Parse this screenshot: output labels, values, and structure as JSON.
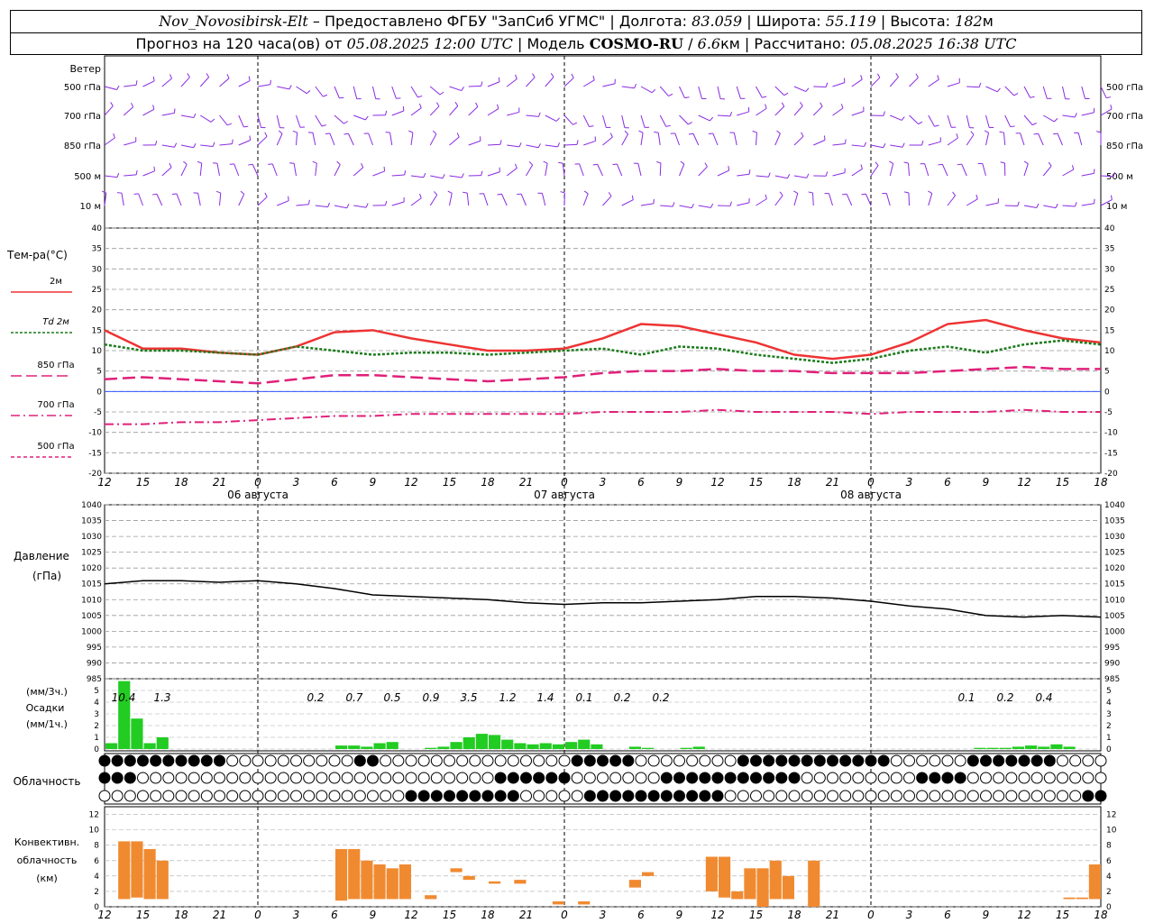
{
  "header": {
    "station": "Nov_Novosibirsk-Elt",
    "dash": "–",
    "provided": "Предоставлено ФГБУ \"ЗапСиб УГМС\"",
    "lon_label": "Долгота:",
    "lon": "83.059",
    "lat_label": "Широта:",
    "lat": "55.119",
    "alt_label": "Высота:",
    "alt": "182",
    "alt_unit": "м",
    "forecast_label": "Прогноз на 120 часа(ов) от",
    "forecast_time": "05.08.2025 12:00 UTC",
    "model_label": "Модель",
    "model": "COSMO-RU",
    "resolution": "6.6",
    "res_unit": "км",
    "calc_label": "Рассчитано:",
    "calc_time": "05.08.2025 16:38 UTC",
    "sep": "|"
  },
  "wind_panel": {
    "title": "Ветер",
    "levels": [
      "500 гПа",
      "700 гПа",
      "850 гПа",
      "500 м",
      "10 м"
    ]
  },
  "temp_panel": {
    "ylabel": "Тем-ра(°С)",
    "yticks": [
      40,
      35,
      30,
      25,
      20,
      15,
      10,
      5,
      0,
      -5,
      -10,
      -15,
      -20
    ],
    "legend": [
      {
        "label": "2м",
        "color": "#ee3333",
        "dash": ""
      },
      {
        "label": "Td  2м",
        "color": "#1a7a1a",
        "dash": "3,2"
      },
      {
        "label": "850 гПа",
        "color": "#e0207a",
        "dash": "12,5"
      },
      {
        "label": "700 гПа",
        "color": "#e0207a",
        "dash": "10,4,2,4"
      },
      {
        "label": "500 гПа",
        "color": "#e0207a",
        "dash": "4,3"
      }
    ]
  },
  "xaxis": {
    "hour_labels": [
      "12",
      "15",
      "18",
      "21",
      "0",
      "3",
      "6",
      "9",
      "12",
      "15",
      "18",
      "21",
      "0",
      "3",
      "6",
      "9",
      "12",
      "15",
      "18",
      "21",
      "0",
      "3",
      "6",
      "9",
      "12",
      "15",
      "18"
    ],
    "date_labels": [
      "06 августа",
      "07 августа",
      "08 августа"
    ]
  },
  "pressure_panel": {
    "ylabel1": "Давление",
    "ylabel2": "(гПа)",
    "yticks": [
      1040,
      1035,
      1030,
      1025,
      1020,
      1015,
      1010,
      1005,
      1000,
      995,
      990,
      985
    ]
  },
  "precip_panel": {
    "ylabel1": "(мм/3ч.)",
    "ylabel2": "Осадки",
    "ylabel3": "(мм/1ч.)",
    "yticks": [
      5,
      4,
      3,
      2,
      1,
      0
    ],
    "totals": [
      "10.4",
      "1.3",
      "0.2",
      "0.7",
      "0.5",
      "0.9",
      "3.5",
      "1.2",
      "1.4",
      "0.1",
      "0.2",
      "0.2",
      "0.1",
      "0.2",
      "0.4"
    ]
  },
  "cloud_panel": {
    "label": "Облачность"
  },
  "conv_panel": {
    "ylabel1": "Конвективн.",
    "ylabel2": "облачность",
    "ylabel3": "(км)",
    "yticks": [
      12,
      10,
      8,
      6,
      4,
      2,
      0
    ]
  },
  "colors": {
    "wind": "#8a2be2",
    "t2m": "#ee3333",
    "td2m": "#1a7a1a",
    "t850": "#e0207a",
    "precip": "#22cc22",
    "conv": "#f08a30",
    "pressure": "#000000",
    "zero_line": "#3355ff"
  },
  "chart_data": [
    {
      "type": "line",
      "title": "Тем-ра(°С)",
      "x_hours": [
        0,
        3,
        6,
        9,
        12,
        15,
        18,
        21,
        24,
        27,
        30,
        33,
        36,
        39,
        42,
        45,
        48,
        51,
        54,
        57,
        60,
        63,
        66,
        69,
        72,
        75,
        78
      ],
      "ylim": [
        -20,
        40
      ],
      "series": [
        {
          "name": "2м",
          "values": [
            15,
            10.5,
            10.5,
            9.5,
            9,
            11,
            14.5,
            15,
            13,
            11.5,
            10,
            10,
            10.5,
            13,
            16.5,
            16,
            14,
            12,
            9,
            8,
            9,
            12,
            16.5,
            17.5,
            15,
            13,
            12
          ]
        },
        {
          "name": "Td  2м",
          "values": [
            11.5,
            10,
            10,
            9.5,
            9,
            11,
            10,
            9,
            9.5,
            9.5,
            9,
            9.5,
            10,
            10.5,
            9,
            11,
            10.5,
            9,
            8,
            7,
            8,
            10,
            11,
            9.5,
            11.5,
            12.5,
            11.5
          ]
        },
        {
          "name": "850 гПа",
          "values": [
            3,
            3.5,
            3,
            2.5,
            2,
            3,
            4,
            4,
            3.5,
            3,
            2.5,
            3,
            3.5,
            4.5,
            5,
            5,
            5.5,
            5,
            5,
            4.5,
            4.5,
            4.5,
            5,
            5.5,
            6,
            5.5,
            5.5
          ]
        },
        {
          "name": "700 гПа",
          "values": [
            -8,
            -8,
            -7.5,
            -7.5,
            -7,
            -6.5,
            -6,
            -6,
            -5.5,
            -5.5,
            -5.5,
            -5.5,
            -5.5,
            -5,
            -5,
            -5,
            -4.5,
            -5,
            -5,
            -5,
            -5.5,
            -5,
            -5,
            -5,
            -4.5,
            -5,
            -5
          ]
        }
      ]
    },
    {
      "type": "line",
      "title": "Давление (гПа)",
      "x_hours": [
        0,
        3,
        6,
        9,
        12,
        15,
        18,
        21,
        24,
        27,
        30,
        33,
        36,
        39,
        42,
        45,
        48,
        51,
        54,
        57,
        60,
        63,
        66,
        69,
        72,
        75,
        78
      ],
      "ylim": [
        985,
        1040
      ],
      "series": [
        {
          "name": "",
          "values": [
            1015,
            1016,
            1016,
            1015.5,
            1016,
            1015,
            1013.5,
            1011.5,
            1011,
            1010.5,
            1010,
            1009,
            1008.5,
            1009,
            1009,
            1009.5,
            1010,
            1011,
            1011,
            1010.5,
            1009.5,
            1008,
            1007,
            1005,
            1004.5,
            1005,
            1004.5
          ]
        }
      ]
    },
    {
      "type": "bar",
      "title": "Осадки (мм/1ч.)",
      "x_hours": [
        0,
        1,
        2,
        3,
        4,
        5,
        6,
        7,
        8,
        9,
        10,
        11,
        12,
        13,
        14,
        15,
        16,
        17,
        18,
        19,
        20,
        21,
        22,
        23,
        24,
        25,
        26,
        27,
        28,
        29,
        30,
        31,
        32,
        33,
        34,
        35,
        36,
        37,
        38,
        39,
        40,
        41,
        42,
        43,
        44,
        45,
        46,
        47,
        48,
        49,
        50,
        51,
        52,
        53,
        54,
        55,
        56,
        57,
        58,
        59,
        60,
        61,
        62,
        63,
        64,
        65,
        66,
        67,
        68,
        69,
        70,
        71,
        72,
        73,
        74,
        75,
        76,
        77,
        78
      ],
      "ylim": [
        0,
        6
      ],
      "values": [
        0.5,
        5.8,
        2.6,
        0.5,
        1,
        0,
        0,
        0,
        0,
        0,
        0,
        0,
        0,
        0,
        0,
        0,
        0,
        0,
        0.3,
        0.3,
        0.2,
        0.5,
        0.6,
        0,
        0,
        0.1,
        0.2,
        0.6,
        1,
        1.3,
        1.2,
        0.8,
        0.5,
        0.4,
        0.5,
        0.4,
        0.6,
        0.8,
        0.4,
        0,
        0,
        0.2,
        0.1,
        0,
        0,
        0.1,
        0.2,
        0,
        0,
        0,
        0,
        0,
        0,
        0,
        0,
        0,
        0,
        0,
        0,
        0,
        0,
        0,
        0,
        0,
        0,
        0,
        0,
        0,
        0.1,
        0.1,
        0.1,
        0.2,
        0.3,
        0.2,
        0.4,
        0.2,
        0,
        0,
        0
      ]
    },
    {
      "type": "bar",
      "title": "Конвективн. облачность (км)",
      "x_hours": [
        0,
        1,
        2,
        3,
        4,
        5,
        6,
        7,
        8,
        9,
        10,
        11,
        12,
        13,
        14,
        15,
        16,
        17,
        18,
        19,
        20,
        21,
        22,
        23,
        24,
        25,
        26,
        27,
        28,
        29,
        30,
        31,
        32,
        33,
        34,
        35,
        36,
        37,
        38,
        39,
        40,
        41,
        42,
        43,
        44,
        45,
        46,
        47,
        48,
        49,
        50,
        51,
        52,
        53,
        54,
        55,
        56,
        57,
        58,
        59,
        60,
        61,
        62,
        63,
        64,
        65,
        66,
        67,
        68,
        69,
        70,
        71,
        72,
        73,
        74,
        75,
        76,
        77,
        78
      ],
      "ylim": [
        0,
        13
      ],
      "base": [
        0,
        1,
        1.2,
        1,
        1,
        0,
        0,
        0,
        0,
        0,
        0,
        0,
        0,
        0,
        0,
        0,
        0,
        0,
        0.8,
        1,
        1,
        1,
        1,
        1,
        0,
        1,
        0,
        4.5,
        3.5,
        0,
        3,
        0,
        3,
        0,
        0,
        0.3,
        0,
        0.3,
        0,
        0,
        0,
        2.5,
        4,
        0,
        0,
        0,
        0,
        2,
        1.2,
        1,
        1,
        0,
        1,
        1,
        0,
        0,
        0,
        0,
        0,
        0,
        0,
        0,
        0,
        0,
        0,
        0,
        0,
        0,
        0,
        0,
        0,
        0,
        0,
        1,
        1,
        1,
        1,
        1,
        0
      ],
      "top": [
        0,
        8.5,
        8.5,
        7.5,
        6,
        0,
        0,
        0,
        0,
        0,
        0,
        0,
        0,
        0,
        0,
        0,
        0,
        0,
        7.5,
        7.5,
        6,
        5.5,
        5,
        5.5,
        0,
        1.5,
        0,
        5,
        4,
        0,
        3.3,
        0,
        3.5,
        0,
        0,
        0.7,
        0,
        0.7,
        0,
        0,
        0,
        3.5,
        4.5,
        0,
        0,
        0,
        0,
        6.5,
        6.5,
        2,
        5,
        5,
        6,
        4,
        0,
        6,
        0,
        0,
        0,
        0,
        0,
        0,
        0,
        0,
        0,
        0,
        0,
        0,
        0,
        0,
        0,
        0,
        0,
        0.3,
        0.3,
        1.2,
        1.2,
        5.5,
        0
      ]
    }
  ]
}
